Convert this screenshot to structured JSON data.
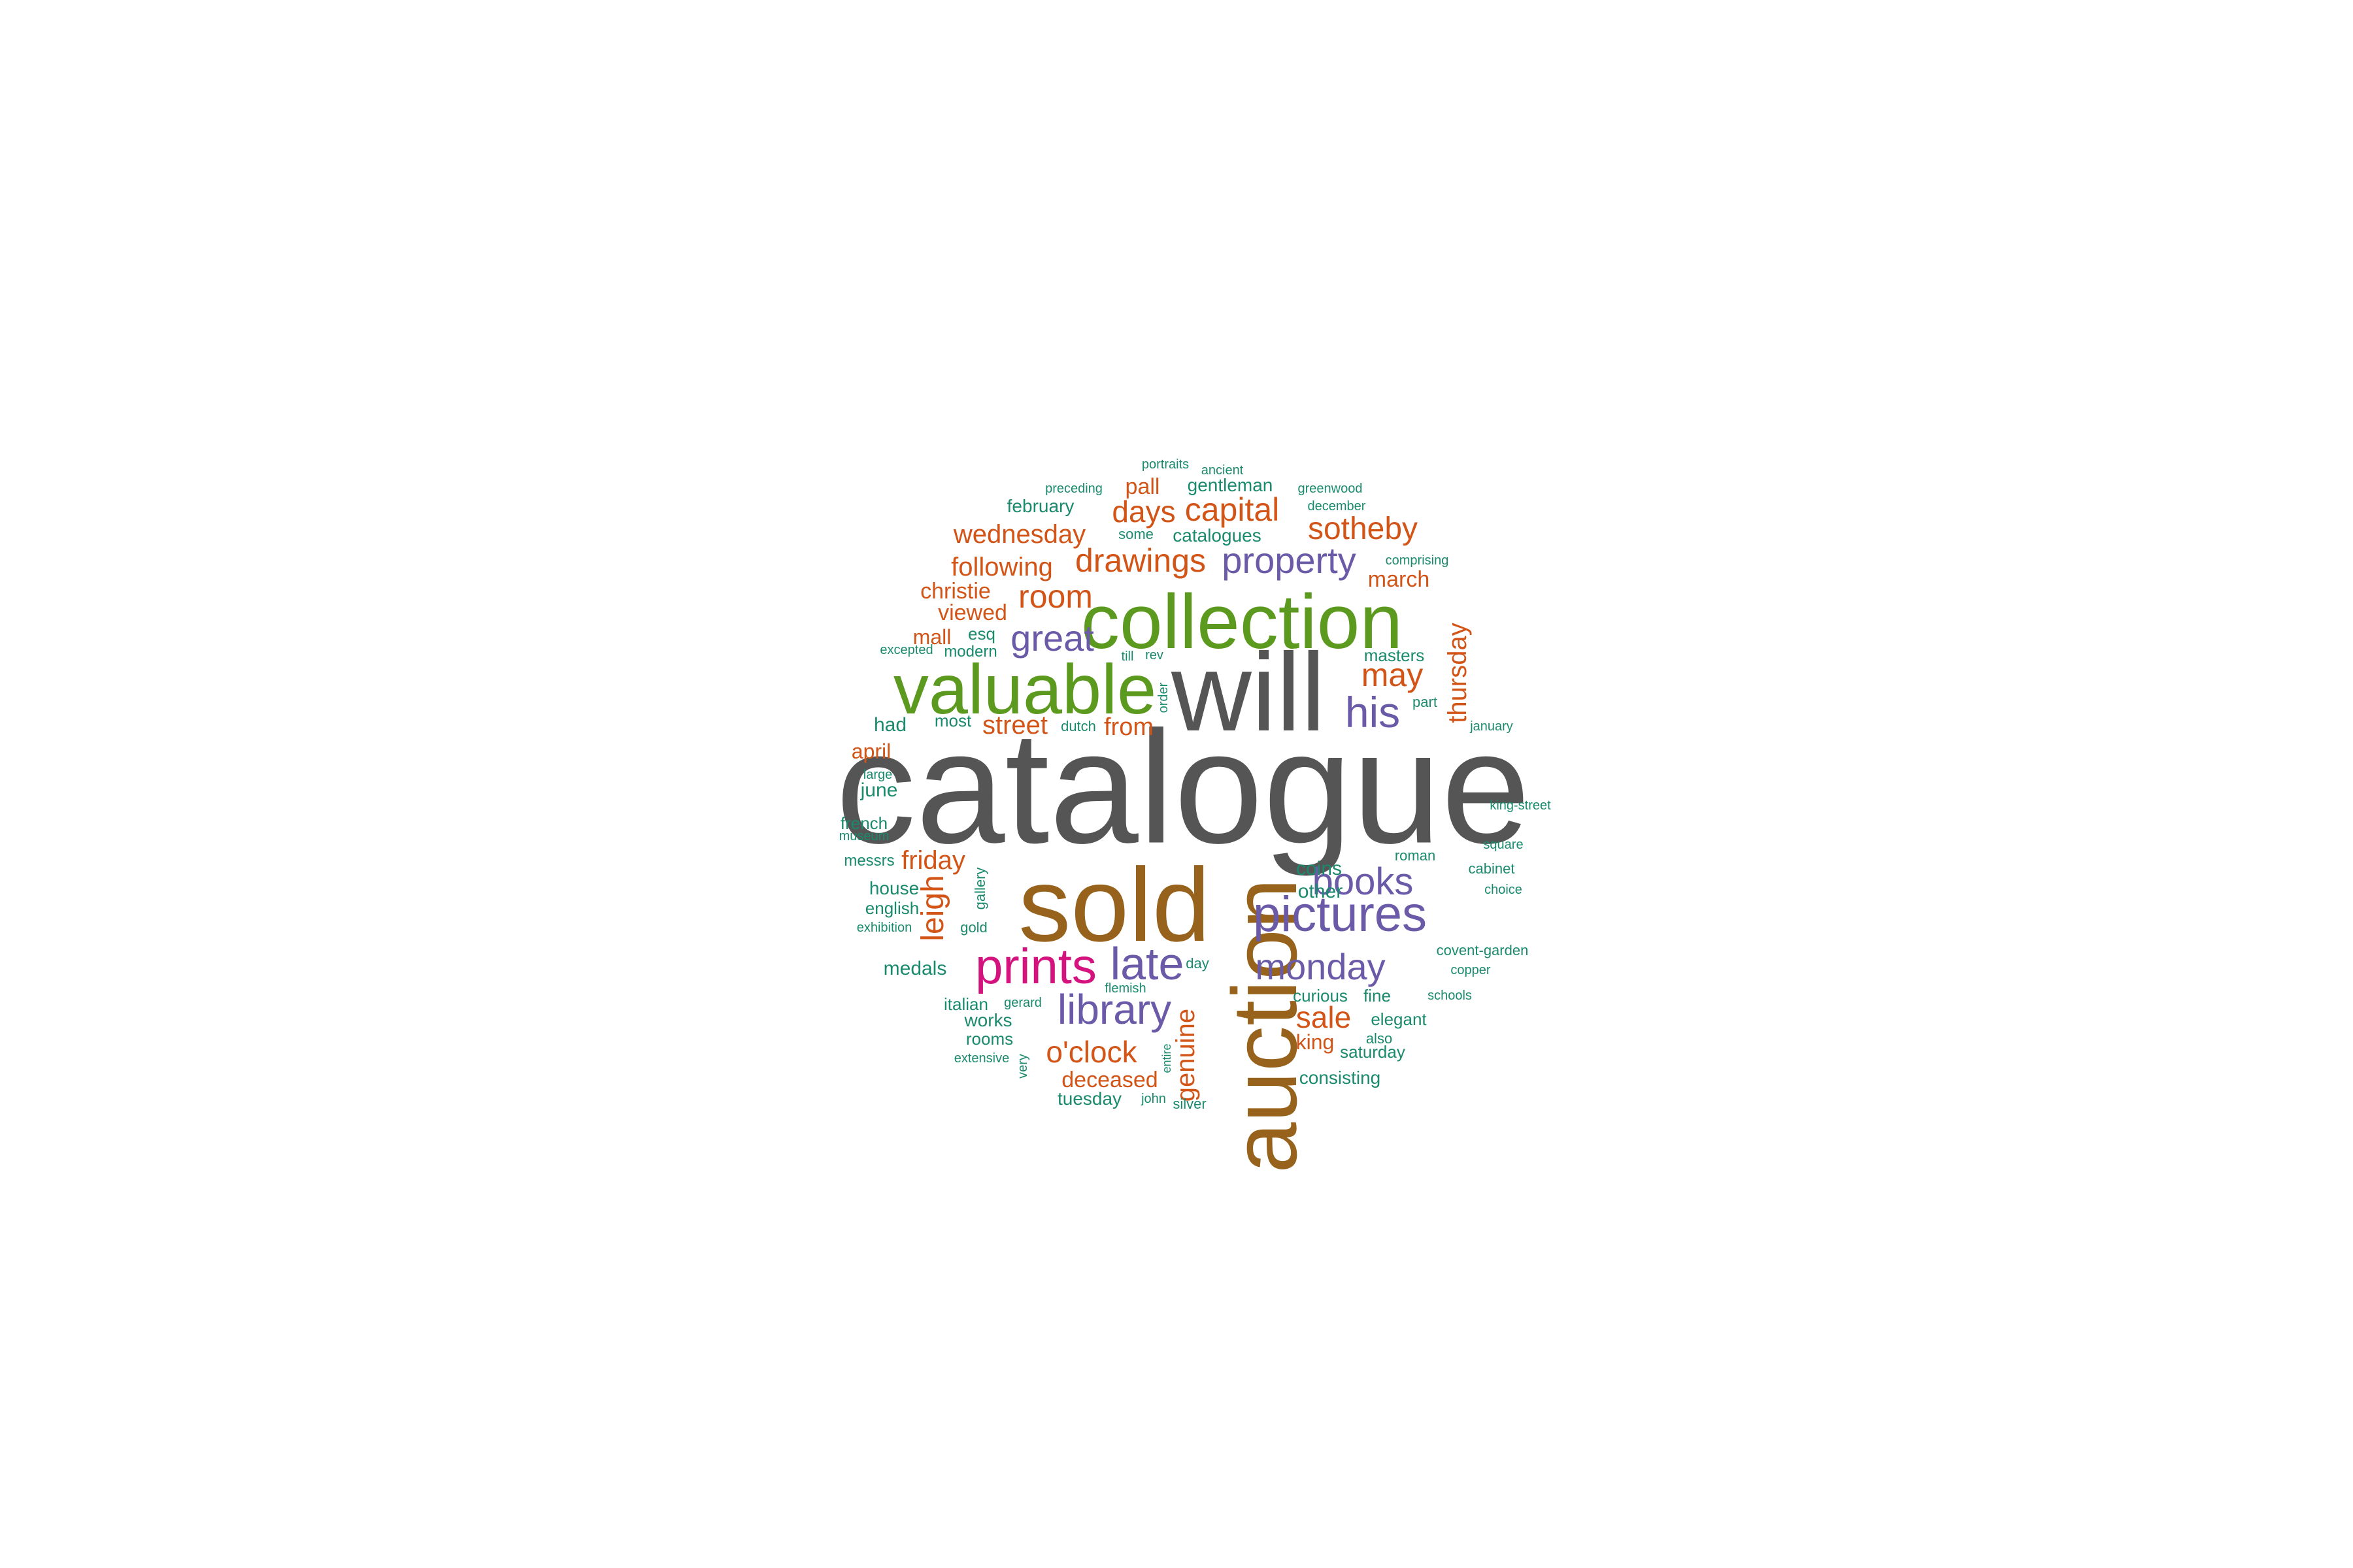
{
  "colors": {
    "background": "#ffffff",
    "gray": "#555555",
    "brown": "#96621c",
    "green": "#5b9a1f",
    "purple": "#6a5aa8",
    "magenta": "#d4137e",
    "orange": "#d35417",
    "teal": "#1a8a6c"
  },
  "words": [
    {
      "text": "catalogue",
      "color": "gray"
    },
    {
      "text": "will",
      "color": "gray"
    },
    {
      "text": "sold",
      "color": "brown"
    },
    {
      "text": "auction",
      "color": "brown"
    },
    {
      "text": "collection",
      "color": "green"
    },
    {
      "text": "valuable",
      "color": "green"
    },
    {
      "text": "pictures",
      "color": "purple"
    },
    {
      "text": "prints",
      "color": "magenta"
    },
    {
      "text": "late",
      "color": "purple"
    },
    {
      "text": "library",
      "color": "purple"
    },
    {
      "text": "books",
      "color": "purple"
    },
    {
      "text": "monday",
      "color": "purple"
    },
    {
      "text": "great",
      "color": "purple"
    },
    {
      "text": "his",
      "color": "purple"
    },
    {
      "text": "property",
      "color": "purple"
    },
    {
      "text": "drawings",
      "color": "orange"
    },
    {
      "text": "capital",
      "color": "orange"
    },
    {
      "text": "days",
      "color": "orange"
    },
    {
      "text": "room",
      "color": "orange"
    },
    {
      "text": "sotheby",
      "color": "orange"
    },
    {
      "text": "wednesday",
      "color": "orange"
    },
    {
      "text": "following",
      "color": "orange"
    },
    {
      "text": "may",
      "color": "orange"
    },
    {
      "text": "thursday",
      "color": "orange"
    },
    {
      "text": "o'clock",
      "color": "orange"
    },
    {
      "text": "genuine",
      "color": "orange"
    },
    {
      "text": "leigh",
      "color": "orange"
    },
    {
      "text": "sale",
      "color": "orange"
    },
    {
      "text": "friday",
      "color": "orange"
    },
    {
      "text": "street",
      "color": "orange"
    },
    {
      "text": "from",
      "color": "orange"
    },
    {
      "text": "deceased",
      "color": "orange"
    },
    {
      "text": "christie",
      "color": "orange"
    },
    {
      "text": "viewed",
      "color": "orange"
    },
    {
      "text": "mall",
      "color": "orange"
    },
    {
      "text": "pall",
      "color": "orange"
    },
    {
      "text": "march",
      "color": "orange"
    },
    {
      "text": "april",
      "color": "orange"
    },
    {
      "text": "king",
      "color": "orange"
    },
    {
      "text": "gentleman",
      "color": "teal"
    },
    {
      "text": "february",
      "color": "teal"
    },
    {
      "text": "catalogues",
      "color": "teal"
    },
    {
      "text": "portraits",
      "color": "teal"
    },
    {
      "text": "ancient",
      "color": "teal"
    },
    {
      "text": "preceding",
      "color": "teal"
    },
    {
      "text": "greenwood",
      "color": "teal"
    },
    {
      "text": "december",
      "color": "teal"
    },
    {
      "text": "some",
      "color": "teal"
    },
    {
      "text": "comprising",
      "color": "teal"
    },
    {
      "text": "esq",
      "color": "teal"
    },
    {
      "text": "excepted",
      "color": "teal"
    },
    {
      "text": "modern",
      "color": "teal"
    },
    {
      "text": "till",
      "color": "teal"
    },
    {
      "text": "rev",
      "color": "teal"
    },
    {
      "text": "masters",
      "color": "teal"
    },
    {
      "text": "part",
      "color": "teal"
    },
    {
      "text": "january",
      "color": "teal"
    },
    {
      "text": "order",
      "color": "teal"
    },
    {
      "text": "had",
      "color": "teal"
    },
    {
      "text": "most",
      "color": "teal"
    },
    {
      "text": "dutch",
      "color": "teal"
    },
    {
      "text": "large",
      "color": "teal"
    },
    {
      "text": "june",
      "color": "teal"
    },
    {
      "text": "king-street",
      "color": "teal"
    },
    {
      "text": "french",
      "color": "teal"
    },
    {
      "text": "museum",
      "color": "teal"
    },
    {
      "text": "square",
      "color": "teal"
    },
    {
      "text": "roman",
      "color": "teal"
    },
    {
      "text": "messrs",
      "color": "teal"
    },
    {
      "text": "coins",
      "color": "teal"
    },
    {
      "text": "cabinet",
      "color": "teal"
    },
    {
      "text": "house",
      "color": "teal"
    },
    {
      "text": "gallery",
      "color": "teal"
    },
    {
      "text": "other",
      "color": "teal"
    },
    {
      "text": "choice",
      "color": "teal"
    },
    {
      "text": "english",
      "color": "teal"
    },
    {
      "text": "exhibition",
      "color": "teal"
    },
    {
      "text": "gold",
      "color": "teal"
    },
    {
      "text": "covent-garden",
      "color": "teal"
    },
    {
      "text": "medals",
      "color": "teal"
    },
    {
      "text": "day",
      "color": "teal"
    },
    {
      "text": "copper",
      "color": "teal"
    },
    {
      "text": "flemish",
      "color": "teal"
    },
    {
      "text": "curious",
      "color": "teal"
    },
    {
      "text": "fine",
      "color": "teal"
    },
    {
      "text": "schools",
      "color": "teal"
    },
    {
      "text": "italian",
      "color": "teal"
    },
    {
      "text": "gerard",
      "color": "teal"
    },
    {
      "text": "elegant",
      "color": "teal"
    },
    {
      "text": "works",
      "color": "teal"
    },
    {
      "text": "rooms",
      "color": "teal"
    },
    {
      "text": "also",
      "color": "teal"
    },
    {
      "text": "saturday",
      "color": "teal"
    },
    {
      "text": "extensive",
      "color": "teal"
    },
    {
      "text": "entire",
      "color": "teal"
    },
    {
      "text": "very",
      "color": "teal"
    },
    {
      "text": "consisting",
      "color": "teal"
    },
    {
      "text": "tuesday",
      "color": "teal"
    },
    {
      "text": "john",
      "color": "teal"
    },
    {
      "text": "silver",
      "color": "teal"
    }
  ]
}
